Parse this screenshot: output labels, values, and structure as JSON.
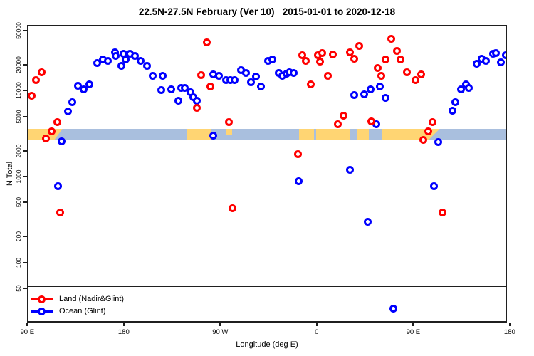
{
  "title": "22.5N-27.5N February (Ver 10)   2015-01-01 to 2020-12-18",
  "chart_data": {
    "type": "scatter",
    "title": "22.5N-27.5N February (Ver 10)   2015-01-01 to 2020-12-18",
    "xlabel": "Longitude (deg E)",
    "ylabel": "N Total",
    "x_axis": {
      "note": "longitude degrees east, extended 90E eastward around globe to 180",
      "range": [
        90,
        540
      ],
      "ticks": [
        {
          "deg": 90,
          "label": "90 E"
        },
        {
          "deg": 180,
          "label": "180"
        },
        {
          "deg": 270,
          "label": "90 W"
        },
        {
          "deg": 360,
          "label": "0"
        },
        {
          "deg": 450,
          "label": "90 E"
        },
        {
          "deg": 540,
          "label": "180"
        }
      ]
    },
    "y_axis": {
      "scale": "log",
      "ticks": [
        50000,
        20000,
        10000,
        5000,
        2000,
        1000,
        500,
        200,
        100,
        50
      ],
      "range": [
        29,
        50000
      ]
    },
    "grid": false,
    "legend_position": "bottom-left",
    "legend": [
      {
        "label": "Land (Nadir&Glint)",
        "color": "#ff0000"
      },
      {
        "label": "Ocean (Glint)",
        "color": "#0000ff"
      }
    ],
    "series": [
      {
        "name": "Land (Nadir&Glint)",
        "color": "#ff0000",
        "points": [
          [
            93.8,
            8800
          ],
          [
            97.8,
            13200
          ],
          [
            103.1,
            16300
          ],
          [
            107.7,
            2760
          ],
          [
            112.4,
            3350
          ],
          [
            117.7,
            4290
          ],
          [
            121.0,
            385
          ],
          [
            247.9,
            6250
          ],
          [
            251.9,
            15300
          ],
          [
            257.2,
            36800
          ],
          [
            260.5,
            11100
          ],
          [
            277.8,
            4270
          ],
          [
            281.1,
            432
          ],
          [
            342.8,
            1810
          ],
          [
            346.8,
            26100
          ],
          [
            350.1,
            22400
          ],
          [
            354.3,
            11900
          ],
          [
            361.4,
            25700
          ],
          [
            363.4,
            21600
          ],
          [
            365.4,
            27200
          ],
          [
            370.7,
            14800
          ],
          [
            375.3,
            26600
          ],
          [
            380.0,
            4030
          ],
          [
            385.3,
            5070
          ],
          [
            391.3,
            27700
          ],
          [
            395.3,
            23700
          ],
          [
            399.9,
            32900
          ],
          [
            410.6,
            4350
          ],
          [
            416.6,
            18500
          ],
          [
            419.9,
            15000
          ],
          [
            424.5,
            22900
          ],
          [
            429.8,
            39800
          ],
          [
            435.1,
            28800
          ],
          [
            438.4,
            23300
          ],
          [
            444.4,
            16500
          ],
          [
            452.4,
            13400
          ],
          [
            457.7,
            15600
          ],
          [
            459.7,
            2650
          ],
          [
            464.3,
            3330
          ],
          [
            468.3,
            4270
          ],
          [
            477.0,
            385
          ]
        ]
      },
      {
        "name": "Ocean (Glint)",
        "color": "#0000ff",
        "points": [
          [
            118.4,
            766
          ],
          [
            122.3,
            2550
          ],
          [
            127.7,
            5680
          ],
          [
            132.3,
            7410
          ],
          [
            137.0,
            11300
          ],
          [
            142.3,
            10300
          ],
          [
            147.6,
            11900
          ],
          [
            154.9,
            20800
          ],
          [
            160.2,
            22900
          ],
          [
            165.5,
            22400
          ],
          [
            171.5,
            28200
          ],
          [
            172.8,
            25200
          ],
          [
            178.1,
            19600
          ],
          [
            180.1,
            26700
          ],
          [
            182.1,
            22900
          ],
          [
            186.1,
            26700
          ],
          [
            190.7,
            25200
          ],
          [
            195.4,
            22400
          ],
          [
            201.4,
            19300
          ],
          [
            206.7,
            15000
          ],
          [
            215.3,
            10100
          ],
          [
            216.0,
            15000
          ],
          [
            224.6,
            10300
          ],
          [
            231.2,
            7570
          ],
          [
            233.9,
            10700
          ],
          [
            236.6,
            10700
          ],
          [
            241.9,
            9680
          ],
          [
            245.2,
            8320
          ],
          [
            247.9,
            7570
          ],
          [
            263.2,
            2970
          ],
          [
            263.8,
            15600
          ],
          [
            269.1,
            15000
          ],
          [
            275.1,
            13400
          ],
          [
            279.1,
            13400
          ],
          [
            283.1,
            13400
          ],
          [
            289.7,
            17500
          ],
          [
            293.7,
            16200
          ],
          [
            299.0,
            12600
          ],
          [
            303.0,
            14500
          ],
          [
            308.3,
            11100
          ],
          [
            314.9,
            22400
          ],
          [
            318.9,
            23300
          ],
          [
            324.9,
            16200
          ],
          [
            328.2,
            15000
          ],
          [
            332.2,
            15900
          ],
          [
            334.8,
            16500
          ],
          [
            338.2,
            16200
          ],
          [
            343.5,
            891
          ],
          [
            391.3,
            1190
          ],
          [
            394.7,
            8810
          ],
          [
            404.6,
            9140
          ],
          [
            407.3,
            295
          ],
          [
            410.0,
            10400
          ],
          [
            415.3,
            4100
          ],
          [
            418.6,
            11100
          ],
          [
            424.5,
            8170
          ],
          [
            431.8,
            29
          ],
          [
            469.6,
            766
          ],
          [
            473.6,
            2500
          ],
          [
            486.9,
            5790
          ],
          [
            489.5,
            7410
          ],
          [
            494.9,
            10300
          ],
          [
            499.5,
            11900
          ],
          [
            502.2,
            10700
          ],
          [
            509.5,
            20400
          ],
          [
            514.1,
            23700
          ],
          [
            518.1,
            22400
          ],
          [
            524.7,
            26700
          ],
          [
            527.4,
            27200
          ],
          [
            532.0,
            21200
          ],
          [
            536.7,
            25700
          ]
        ]
      }
    ],
    "land_ocean_strip": {
      "description": "map strip showing land vs ocean along 22.5N-27.5N",
      "n_value_band": [
        2720,
        3630
      ],
      "land_color": "#ffd573",
      "ocean_color": "#a9bfde",
      "segments": [
        {
          "type": "ocean",
          "from": 90,
          "to": 540
        },
        {
          "type": "land",
          "from": 90,
          "to": 115.7
        },
        {
          "type": "land-wedge",
          "from": 115.7,
          "to": 123
        },
        {
          "type": "land",
          "from": 239.2,
          "to": 261.2
        },
        {
          "type": "land-partial",
          "from": 275.8,
          "to": 281.1
        },
        {
          "type": "land",
          "from": 343.5,
          "to": 465
        },
        {
          "type": "land-wedge",
          "from": 465,
          "to": 475
        },
        {
          "type": "ocean-patch",
          "from": 357.4,
          "to": 359.4
        },
        {
          "type": "ocean-patch",
          "from": 391.3,
          "to": 397.9
        },
        {
          "type": "ocean-patch",
          "from": 408.5,
          "to": 421
        }
      ]
    }
  }
}
